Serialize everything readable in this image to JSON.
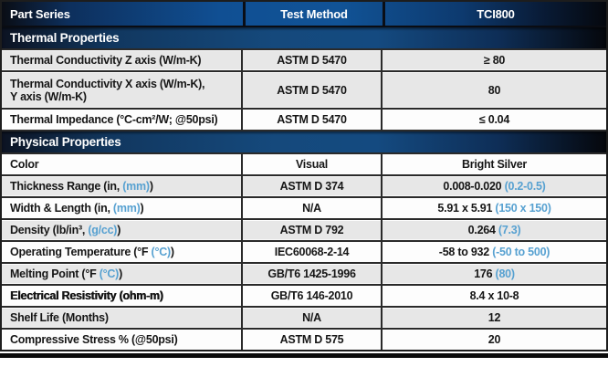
{
  "table": {
    "header": {
      "part_series": "Part Series",
      "test_method": "Test Method",
      "product": "TCI800"
    },
    "rows": [
      {
        "type": "section",
        "title": "Thermal Properties"
      },
      {
        "type": "row",
        "shade": "gray",
        "label_pre": "Thermal Conductivity Z axis (W/m-K)",
        "method": "ASTM D 5470",
        "value_pre": "≥ 80"
      },
      {
        "type": "row",
        "shade": "gray",
        "tall": true,
        "label_pre": "Thermal Conductivity X axis (W/m-K),",
        "label_line2": "Y axis (W/m-K)",
        "method": "ASTM D 5470",
        "value_pre": "80"
      },
      {
        "type": "row",
        "shade": "white",
        "label_pre": "Thermal Impedance (°C-cm²/W; @50psi)",
        "method": "ASTM D 5470",
        "value_pre": "≤ 0.04"
      },
      {
        "type": "section",
        "title": "Physical Properties"
      },
      {
        "type": "row",
        "shade": "white",
        "label_pre": "Color",
        "method": "Visual",
        "value_pre": "Bright Silver"
      },
      {
        "type": "row",
        "shade": "gray",
        "label_pre": "Thickness Range (in, ",
        "label_blue": "(mm)",
        "label_post": ")",
        "method": "ASTM D 374",
        "value_pre": "0.008-0.020 ",
        "value_blue": "(0.2-0.5)"
      },
      {
        "type": "row",
        "shade": "white",
        "label_pre": "Width & Length (in, ",
        "label_blue": "(mm)",
        "label_post": ")",
        "method": "N/A",
        "value_pre": "5.91 x 5.91 ",
        "value_blue": "(150 x 150)"
      },
      {
        "type": "row",
        "shade": "gray",
        "label_pre": "Density (lb/in³, ",
        "label_blue": "(g/cc)",
        "label_post": ")",
        "method": "ASTM D 792",
        "value_pre": "0.264 ",
        "value_blue": "(7.3)"
      },
      {
        "type": "row",
        "shade": "white",
        "label_pre": "Operating Temperature (°F ",
        "label_blue": "(°C)",
        "label_post": ")",
        "method": "IEC60068-2-14",
        "value_pre": "-58 to 932 ",
        "value_blue": "(-50 to 500)"
      },
      {
        "type": "row",
        "shade": "gray",
        "label_pre": "Melting Point (°F ",
        "label_blue": "(°C)",
        "label_post": ")",
        "method": "GB/T6 1425-1996",
        "value_pre": "176 ",
        "value_blue": "(80)"
      },
      {
        "type": "row",
        "shade": "white",
        "bold": true,
        "label_pre": "Electrical Resistivity (ohm-m)",
        "method": "GB/T6 146-2010",
        "value_pre": "8.4 x 10-8"
      },
      {
        "type": "row",
        "shade": "gray",
        "label_pre": "Shelf Life (Months)",
        "method": "N/A",
        "value_pre": "12"
      },
      {
        "type": "row",
        "shade": "white",
        "label_pre": "Compressive Stress % (@50psi)",
        "method": "ASTM D 575",
        "value_pre": "20"
      }
    ],
    "colors": {
      "accent_blue": "#57a1d1",
      "header_blue": "#115396",
      "banner_blue": "#144a80",
      "row_gray": "#e7e7e7",
      "border_dark": "#2a2a2a"
    }
  }
}
